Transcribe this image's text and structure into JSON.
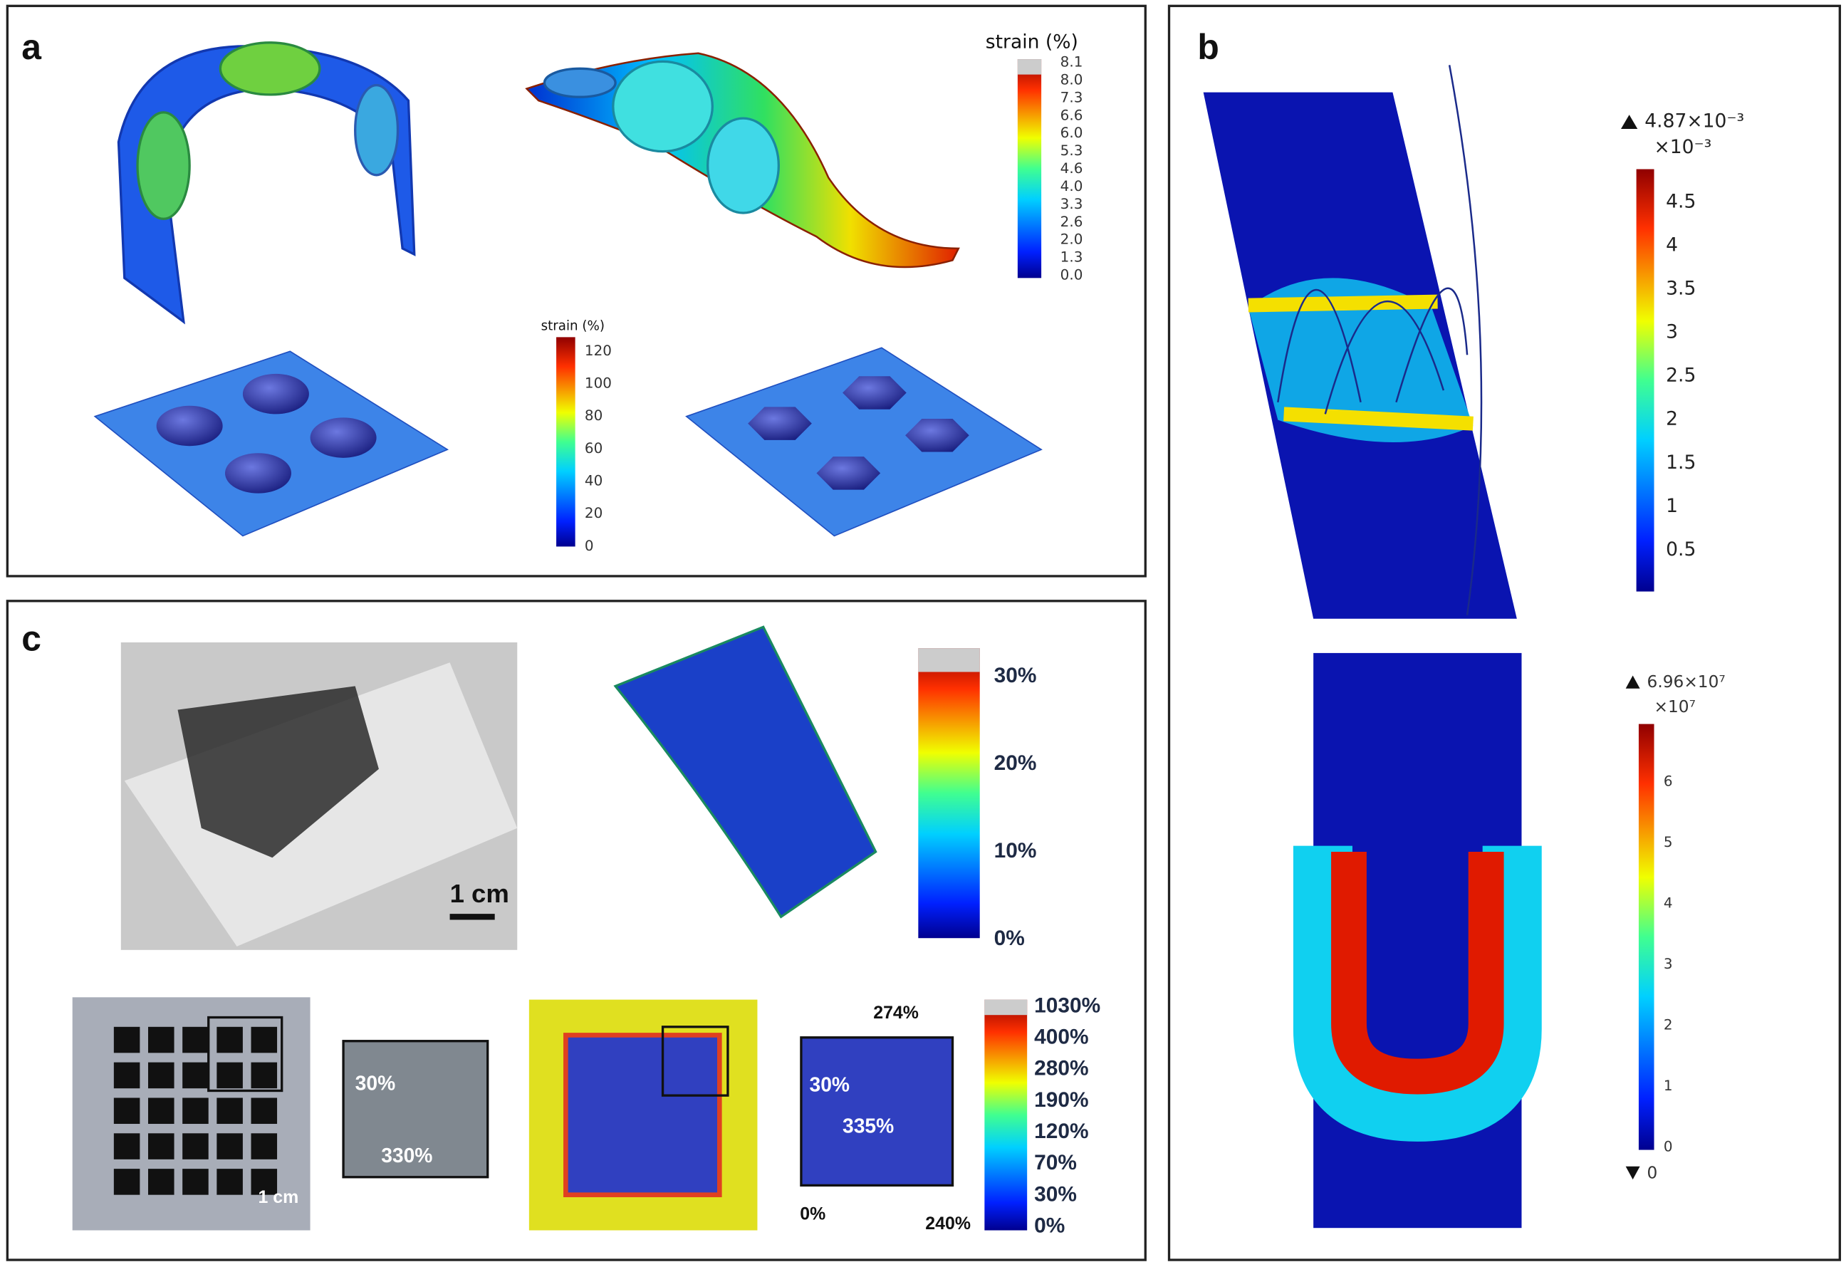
{
  "panels": [
    {
      "label": "a",
      "colorbars": [
        {
          "title": "strain (%)",
          "ticks": [
            "8.1",
            "8.0",
            "7.3",
            "6.6",
            "6.0",
            "5.3",
            "4.6",
            "4.0",
            "3.3",
            "2.6",
            "2.0",
            "1.3",
            "0.0"
          ]
        },
        {
          "title": "strain (%)",
          "ticks": [
            "120",
            "100",
            "80",
            "60",
            "40",
            "20",
            "0"
          ]
        }
      ]
    },
    {
      "label": "b",
      "colorbars": [
        {
          "max": "4.87×10⁻³",
          "unit": "×10⁻³",
          "ticks": [
            "4.5",
            "4",
            "3.5",
            "3",
            "2.5",
            "2",
            "1.5",
            "1",
            "0.5"
          ]
        },
        {
          "max": "6.96×10⁷",
          "unit": "×10⁷",
          "ticks": [
            "6",
            "5",
            "4",
            "3",
            "2",
            "1",
            "0"
          ],
          "min": "0"
        }
      ]
    },
    {
      "label": "c",
      "colorbars": [
        {
          "ticks": [
            "30%",
            "20%",
            "10%",
            "0%"
          ]
        },
        {
          "ticks": [
            "1030%",
            "400%",
            "280%",
            "190%",
            "120%",
            "70%",
            "30%",
            "0%"
          ]
        }
      ],
      "annotations": [
        "1 cm",
        "1 cm",
        "30%",
        "330%",
        "30%",
        "335%",
        "274%",
        "0%",
        "240%"
      ]
    }
  ]
}
